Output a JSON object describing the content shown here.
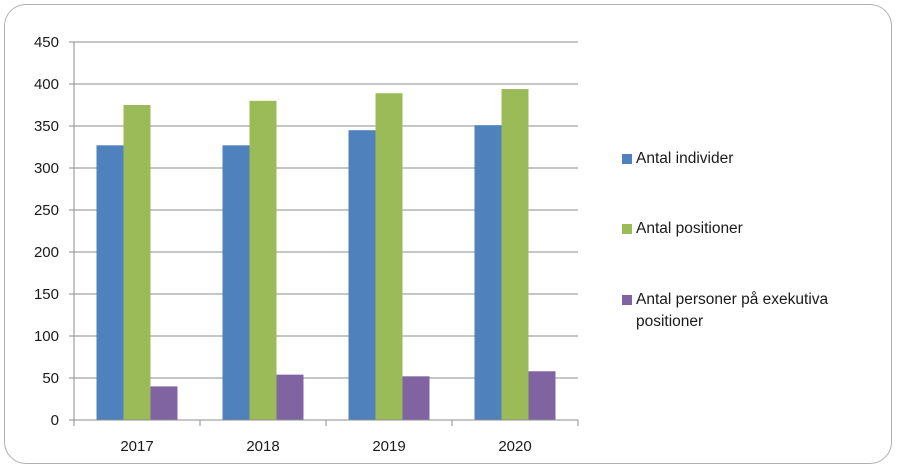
{
  "chart_data": {
    "type": "bar",
    "title": "",
    "xlabel": "",
    "ylabel": "",
    "categories": [
      "2017",
      "2018",
      "2019",
      "2020"
    ],
    "series": [
      {
        "name": "Antal individer",
        "values": [
          327,
          327,
          345,
          351
        ],
        "color": "#4f81bd"
      },
      {
        "name": "Antal positioner",
        "values": [
          375,
          380,
          389,
          394
        ],
        "color": "#9bbb59"
      },
      {
        "name": "Antal personer på exekutiva positioner",
        "values": [
          40,
          54,
          52,
          58
        ],
        "color": "#8064a2"
      }
    ],
    "ylim": [
      0,
      450
    ],
    "yticks": [
      "0",
      "50",
      "100",
      "150",
      "200",
      "250",
      "300",
      "350",
      "400",
      "450"
    ],
    "grid": true,
    "legend_position": "right"
  }
}
